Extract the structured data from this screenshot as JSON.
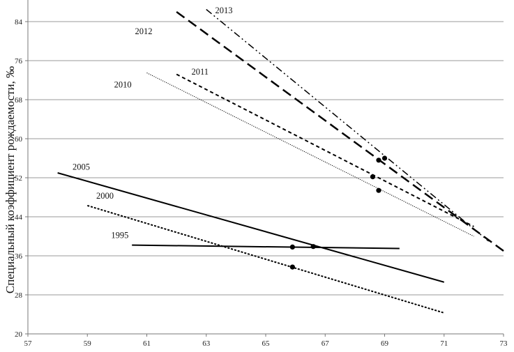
{
  "chart_data": {
    "type": "line",
    "title": "",
    "xlabel": "",
    "ylabel": "Специальный коэффициент рождаемости, ‰",
    "xlim": [
      57,
      73
    ],
    "ylim": [
      20,
      86
    ],
    "x_ticks": [
      57,
      59,
      61,
      63,
      65,
      67,
      69,
      71,
      73
    ],
    "y_ticks": [
      20,
      28,
      36,
      44,
      52,
      60,
      68,
      76,
      84
    ],
    "x_tick_labels": [
      "57",
      "59",
      "61",
      "63",
      "65",
      "67",
      "69",
      "71",
      "73"
    ],
    "y_tick_labels": [
      "20",
      "28",
      "36",
      "44",
      "52",
      "60",
      "68",
      "76",
      "84"
    ],
    "grid": {
      "horizontal": true,
      "vertical": false
    },
    "series": [
      {
        "name": "1995",
        "style": "solid",
        "width": 2.0,
        "x": [
          60.5,
          69.5
        ],
        "y": [
          38.2,
          37.5
        ],
        "markers": [
          {
            "x": 65.9,
            "y": 37.8
          },
          {
            "x": 66.6,
            "y": 37.9
          }
        ]
      },
      {
        "name": "2000",
        "style": "dotted",
        "width": 2.0,
        "x": [
          59.0,
          71.0
        ],
        "y": [
          46.3,
          24.3
        ],
        "markers": [
          {
            "x": 65.9,
            "y": 33.7
          }
        ]
      },
      {
        "name": "2005",
        "style": "solid",
        "width": 2.0,
        "x": [
          58.0,
          71.0
        ],
        "y": [
          53.0,
          30.6
        ],
        "markers": []
      },
      {
        "name": "2010",
        "style": "thin-dotted",
        "width": 1.0,
        "x": [
          61.0,
          72.0
        ],
        "y": [
          73.5,
          40.0
        ],
        "markers": [
          {
            "x": 68.8,
            "y": 49.4
          }
        ]
      },
      {
        "name": "2011",
        "style": "short-dash",
        "width": 2.0,
        "x": [
          62.0,
          72.0
        ],
        "y": [
          73.2,
          42.0
        ],
        "markers": [
          {
            "x": 68.6,
            "y": 52.2
          }
        ]
      },
      {
        "name": "2012",
        "style": "long-dash",
        "width": 2.5,
        "x": [
          62.0,
          73.0
        ],
        "y": [
          86.0,
          37.0
        ],
        "markers": [
          {
            "x": 68.8,
            "y": 55.6
          }
        ]
      },
      {
        "name": "2013",
        "style": "dash-dot-dot",
        "width": 1.5,
        "x": [
          63.0,
          72.5
        ],
        "y": [
          86.5,
          39.0
        ],
        "markers": [
          {
            "x": 69.0,
            "y": 56.0
          }
        ]
      }
    ],
    "annotations": [
      {
        "text": "1995",
        "x": 59.8,
        "y": 40.2
      },
      {
        "text": "2000",
        "x": 59.3,
        "y": 48.3
      },
      {
        "text": "2005",
        "x": 58.5,
        "y": 54.2
      },
      {
        "text": "2010",
        "x": 59.9,
        "y": 71.1
      },
      {
        "text": "2011",
        "x": 62.5,
        "y": 73.7
      },
      {
        "text": "2012",
        "x": 60.6,
        "y": 82.0
      },
      {
        "text": "2013",
        "x": 63.3,
        "y": 86.3
      }
    ]
  }
}
